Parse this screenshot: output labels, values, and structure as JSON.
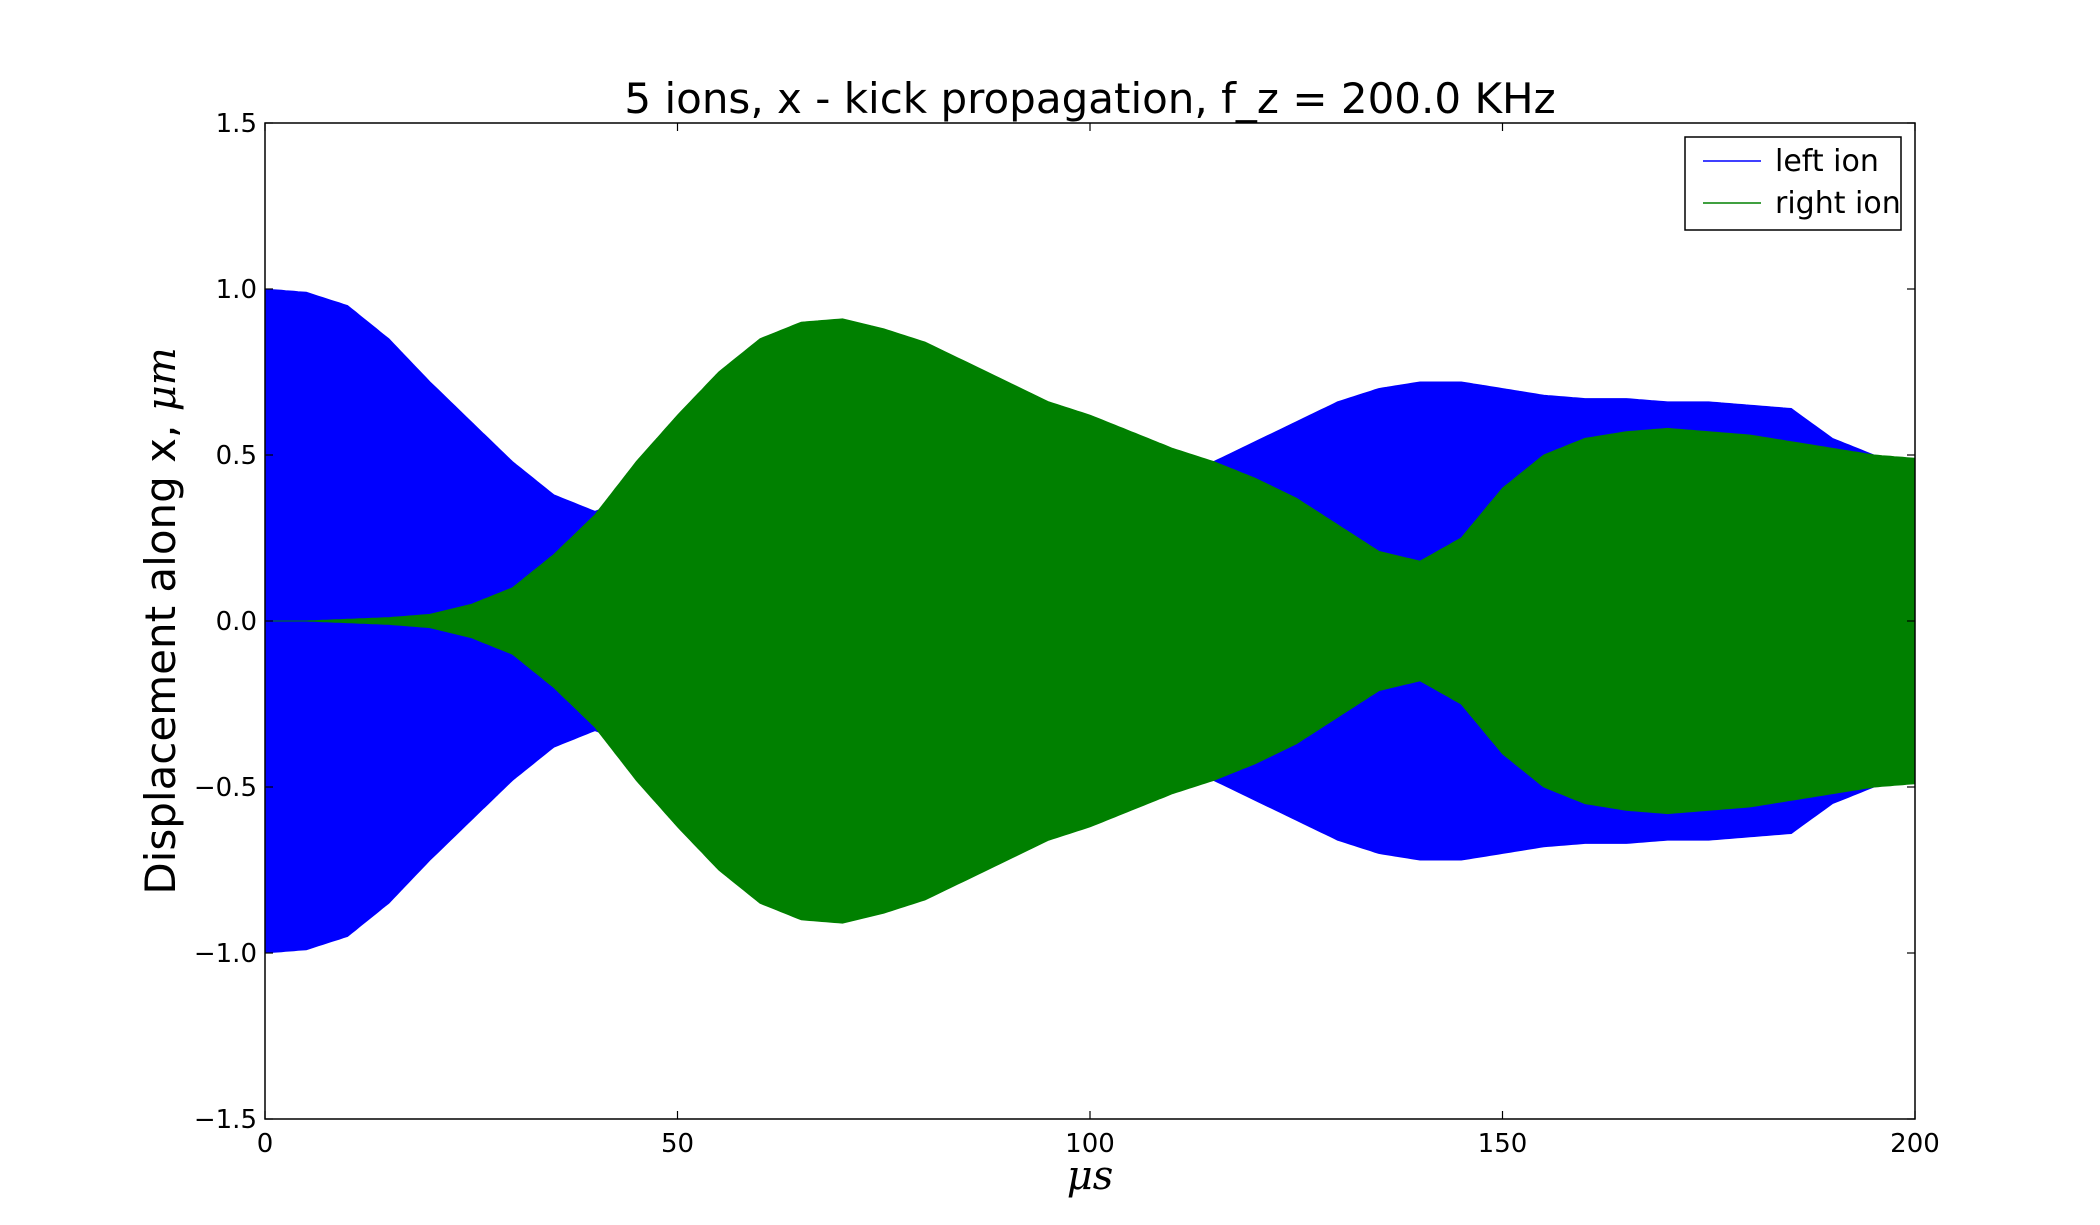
{
  "chart_data": {
    "type": "line",
    "title": "5 ions, x - kick propagation, f_z = 200.0 KHz",
    "xlabel": "μs",
    "ylabel_prefix": "Displacement along x, ",
    "ylabel_unit": "μm",
    "xlim": [
      0,
      200
    ],
    "ylim": [
      -1.5,
      1.5
    ],
    "xticks": [
      0,
      50,
      100,
      150,
      200
    ],
    "xtick_labels": [
      "0",
      "50",
      "100",
      "150",
      "200"
    ],
    "yticks": [
      -1.5,
      -1.0,
      -0.5,
      0.0,
      0.5,
      1.0,
      1.5
    ],
    "ytick_labels": [
      "−1.5",
      "−1.0",
      "−0.5",
      "0.0",
      "0.5",
      "1.0",
      "1.5"
    ],
    "grid": false,
    "legend_position": "top-right",
    "series": [
      {
        "name": "left ion",
        "color": "#0000ff",
        "envelope": {
          "t": [
            0,
            5,
            10,
            15,
            20,
            25,
            30,
            35,
            40,
            45,
            50,
            60,
            70,
            80,
            90,
            100,
            110,
            115,
            120,
            125,
            130,
            135,
            140,
            145,
            150,
            155,
            160,
            165,
            170,
            175,
            180,
            185,
            190,
            195,
            200
          ],
          "amplitude": [
            1.0,
            0.99,
            0.95,
            0.85,
            0.72,
            0.6,
            0.48,
            0.38,
            0.33,
            0.38,
            0.5,
            0.52,
            0.5,
            0.5,
            0.5,
            0.5,
            0.48,
            0.48,
            0.54,
            0.6,
            0.66,
            0.7,
            0.72,
            0.72,
            0.7,
            0.68,
            0.67,
            0.67,
            0.66,
            0.66,
            0.65,
            0.64,
            0.55,
            0.5,
            0.48
          ]
        }
      },
      {
        "name": "right ion",
        "color": "#008000",
        "envelope": {
          "t": [
            0,
            5,
            10,
            15,
            20,
            25,
            30,
            35,
            40,
            45,
            50,
            55,
            60,
            65,
            70,
            75,
            80,
            85,
            90,
            95,
            100,
            105,
            110,
            115,
            120,
            125,
            130,
            135,
            140,
            145,
            150,
            155,
            160,
            165,
            170,
            175,
            180,
            185,
            190,
            195,
            200
          ],
          "amplitude": [
            0.0,
            0.0,
            0.005,
            0.01,
            0.02,
            0.05,
            0.1,
            0.2,
            0.32,
            0.48,
            0.62,
            0.75,
            0.85,
            0.9,
            0.91,
            0.88,
            0.84,
            0.78,
            0.72,
            0.66,
            0.62,
            0.57,
            0.52,
            0.48,
            0.43,
            0.37,
            0.29,
            0.21,
            0.18,
            0.25,
            0.4,
            0.5,
            0.55,
            0.57,
            0.58,
            0.57,
            0.56,
            0.54,
            0.52,
            0.5,
            0.49
          ]
        }
      }
    ]
  }
}
